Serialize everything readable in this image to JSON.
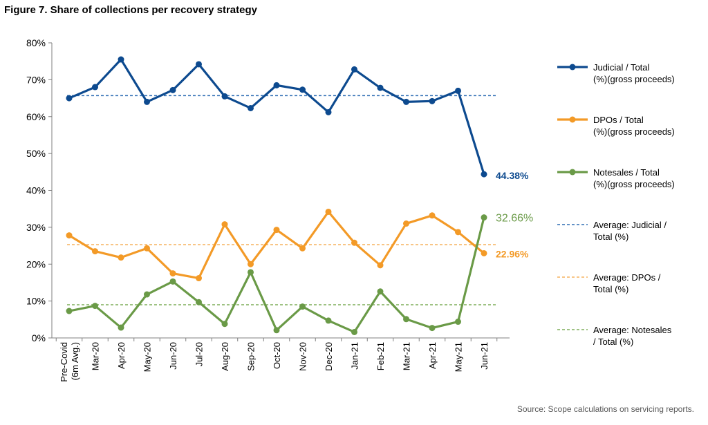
{
  "title": "Figure 7. Share of collections per recovery strategy",
  "source": "Source: Scope calculations on servicing reports.",
  "chart_data": {
    "type": "line",
    "categories": [
      "Pre-Covid (6m Avg.)",
      "Mar-20",
      "Apr-20",
      "May-20",
      "Jun-20",
      "Jul-20",
      "Aug-20",
      "Sep-20",
      "Oct-20",
      "Nov-20",
      "Dec-20",
      "Jan-21",
      "Feb-21",
      "Mar-21",
      "Apr-21",
      "May-21",
      "Jun-21"
    ],
    "category_lines": [
      [
        "Pre-Covid",
        "(6m Avg.)"
      ],
      [
        "Mar-20"
      ],
      [
        "Apr-20"
      ],
      [
        "May-20"
      ],
      [
        "Jun-20"
      ],
      [
        "Jul-20"
      ],
      [
        "Aug-20"
      ],
      [
        "Sep-20"
      ],
      [
        "Oct-20"
      ],
      [
        "Nov-20"
      ],
      [
        "Dec-20"
      ],
      [
        "Jan-21"
      ],
      [
        "Feb-21"
      ],
      [
        "Mar-21"
      ],
      [
        "Apr-21"
      ],
      [
        "May-21"
      ],
      [
        "Jun-21"
      ]
    ],
    "ylim": [
      0,
      80
    ],
    "yticks": [
      "0%",
      "10%",
      "20%",
      "30%",
      "40%",
      "50%",
      "60%",
      "70%",
      "80%"
    ],
    "series": [
      {
        "name": "Judicial / Total (%)(gross proceeds)",
        "legend_lines": [
          "Judicial / Total",
          "(%)(gross proceeds)"
        ],
        "color": "#0d4a8f",
        "style": "solid",
        "values": [
          65.0,
          68.0,
          75.5,
          64.0,
          67.2,
          74.2,
          65.5,
          62.3,
          68.5,
          67.3,
          61.2,
          72.8,
          67.8,
          64.0,
          64.2,
          67.0,
          44.38
        ],
        "end_label": "44.38%"
      },
      {
        "name": "DPOs / Total (%)(gross proceeds)",
        "legend_lines": [
          "DPOs / Total",
          "(%)(gross proceeds)"
        ],
        "color": "#f39a27",
        "style": "solid",
        "values": [
          27.8,
          23.5,
          21.8,
          24.3,
          17.5,
          16.2,
          30.8,
          20.0,
          29.3,
          24.3,
          34.2,
          25.8,
          19.7,
          31.0,
          33.2,
          28.7,
          22.96
        ],
        "end_label": "22.96%"
      },
      {
        "name": "Notesales / Total (%)(gross proceeds)",
        "legend_lines": [
          "Notesales / Total",
          "(%)(gross proceeds)"
        ],
        "color": "#6a9a47",
        "style": "solid",
        "values": [
          7.3,
          8.7,
          2.8,
          11.8,
          15.3,
          9.7,
          3.8,
          17.8,
          2.1,
          8.5,
          4.7,
          1.6,
          12.6,
          5.1,
          2.7,
          4.4,
          32.66
        ],
        "end_label": "32.66%"
      },
      {
        "name": "Average: Judicial / Total (%)",
        "legend_lines": [
          "Average: Judicial /",
          "Total (%)"
        ],
        "color": "#2e6db4",
        "style": "dashed",
        "average": 65.7
      },
      {
        "name": "Average: DPOs / Total (%)",
        "legend_lines": [
          "Average: DPOs /",
          "Total (%)"
        ],
        "color": "#f5b25e",
        "style": "dashed",
        "average": 25.3
      },
      {
        "name": "Average: Notesales / Total (%)",
        "legend_lines": [
          "Average: Notesales",
          "/ Total (%)"
        ],
        "color": "#7fae5a",
        "style": "dashed",
        "average": 9.0
      }
    ]
  }
}
